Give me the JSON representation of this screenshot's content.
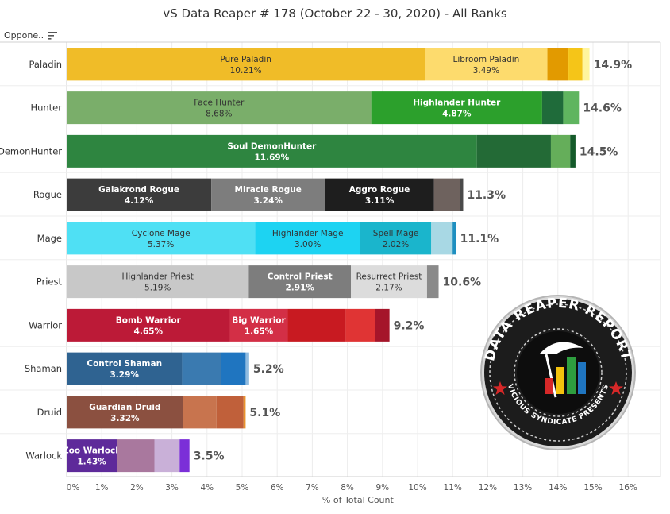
{
  "title": "vS Data Reaper # 178 (October 22 - 30, 2020) - All Ranks",
  "filter_label": "Oppone..",
  "logo": {
    "text_top": "DATA REAPER REPORT",
    "text_bottom": "VICIOUS SYNDICATE PRESENTS"
  },
  "chart_data": {
    "type": "bar",
    "orientation": "horizontal",
    "stacked": true,
    "xlabel": "% of Total Count",
    "ylabel": "",
    "xlim": [
      0,
      16
    ],
    "x_ticks": [
      "0%",
      "1%",
      "2%",
      "3%",
      "4%",
      "5%",
      "6%",
      "7%",
      "8%",
      "9%",
      "10%",
      "11%",
      "12%",
      "13%",
      "14%",
      "15%",
      "16%"
    ],
    "grid": true,
    "categories": [
      {
        "name": "Paladin",
        "total_label": "14.9%",
        "segments": [
          {
            "label": "Pure Paladin",
            "value_label": "10.21%",
            "value": 10.21,
            "color": "#F0BC28",
            "text_color": "#333333"
          },
          {
            "label": "Libroom Paladin",
            "value_label": "3.49%",
            "value": 3.49,
            "color": "#FDDB6D",
            "text_color": "#333333"
          },
          {
            "label": "",
            "value_label": "",
            "value": 0.6,
            "color": "#E29A00"
          },
          {
            "label": "",
            "value_label": "",
            "value": 0.4,
            "color": "#F5C518"
          },
          {
            "label": "",
            "value_label": "",
            "value": 0.2,
            "color": "#FFF59D"
          }
        ]
      },
      {
        "name": "Hunter",
        "total_label": "14.6%",
        "segments": [
          {
            "label": "Face Hunter",
            "value_label": "8.68%",
            "value": 8.68,
            "color": "#7AAE6A",
            "text_color": "#333333"
          },
          {
            "label": "Highlander Hunter",
            "value_label": "4.87%",
            "value": 4.87,
            "color": "#2CA02C",
            "text_color": "#ffffff",
            "bold": true
          },
          {
            "label": "",
            "value_label": "",
            "value": 0.6,
            "color": "#1F6B3A"
          },
          {
            "label": "",
            "value_label": "",
            "value": 0.45,
            "color": "#5FB55F"
          }
        ]
      },
      {
        "name": "DemonHunter",
        "total_label": "14.5%",
        "segments": [
          {
            "label": "Soul DemonHunter",
            "value_label": "11.69%",
            "value": 11.69,
            "color": "#2E8540",
            "text_color": "#ffffff",
            "bold": true
          },
          {
            "label": "",
            "value_label": "",
            "value": 2.11,
            "color": "#236A36"
          },
          {
            "label": "",
            "value_label": "",
            "value": 0.55,
            "color": "#65AE5A"
          },
          {
            "label": "",
            "value_label": "",
            "value": 0.15,
            "color": "#145A2A"
          }
        ]
      },
      {
        "name": "Rogue",
        "total_label": "11.3%",
        "segments": [
          {
            "label": "Galakrond Rogue",
            "value_label": "4.12%",
            "value": 4.12,
            "color": "#3C3C3C",
            "text_color": "#ffffff",
            "bold": true
          },
          {
            "label": "Miracle Rogue",
            "value_label": "3.24%",
            "value": 3.24,
            "color": "#7D7D7D",
            "text_color": "#ffffff",
            "bold": true
          },
          {
            "label": "Aggro Rogue",
            "value_label": "3.11%",
            "value": 3.11,
            "color": "#1E1E1E",
            "text_color": "#ffffff",
            "bold": true
          },
          {
            "label": "",
            "value_label": "",
            "value": 0.73,
            "color": "#6E625E"
          },
          {
            "label": "",
            "value_label": "",
            "value": 0.1,
            "color": "#4A4A4A"
          }
        ]
      },
      {
        "name": "Mage",
        "total_label": "11.1%",
        "segments": [
          {
            "label": "Cyclone Mage",
            "value_label": "5.37%",
            "value": 5.37,
            "color": "#4FE0F4",
            "text_color": "#333333"
          },
          {
            "label": "Highlander Mage",
            "value_label": "3.00%",
            "value": 3.0,
            "color": "#1DD3F2",
            "text_color": "#333333"
          },
          {
            "label": "Spell Mage",
            "value_label": "2.02%",
            "value": 2.02,
            "color": "#1AB5CC",
            "text_color": "#333333"
          },
          {
            "label": "",
            "value_label": "",
            "value": 0.61,
            "color": "#A8D8E4"
          },
          {
            "label": "",
            "value_label": "",
            "value": 0.1,
            "color": "#1E8FC0"
          }
        ]
      },
      {
        "name": "Priest",
        "total_label": "10.6%",
        "segments": [
          {
            "label": "Highlander Priest",
            "value_label": "5.19%",
            "value": 5.19,
            "color": "#C8C8C8",
            "text_color": "#333333"
          },
          {
            "label": "Control Priest",
            "value_label": "2.91%",
            "value": 2.91,
            "color": "#7D7D7D",
            "text_color": "#ffffff",
            "bold": true
          },
          {
            "label": "Resurrect Priest",
            "value_label": "2.17%",
            "value": 2.17,
            "color": "#DCDCDC",
            "text_color": "#333333"
          },
          {
            "label": "",
            "value_label": "",
            "value": 0.33,
            "color": "#8A8A8A"
          }
        ]
      },
      {
        "name": "Warrior",
        "total_label": "9.2%",
        "segments": [
          {
            "label": "Bomb Warrior",
            "value_label": "4.65%",
            "value": 4.65,
            "color": "#BC1A37",
            "text_color": "#ffffff",
            "bold": true
          },
          {
            "label": "Big Warrior",
            "value_label": "1.65%",
            "value": 1.65,
            "color": "#D32F46",
            "text_color": "#ffffff",
            "bold": true
          },
          {
            "label": "",
            "value_label": "",
            "value": 1.65,
            "color": "#C81A21"
          },
          {
            "label": "",
            "value_label": "",
            "value": 0.85,
            "color": "#E03434"
          },
          {
            "label": "",
            "value_label": "",
            "value": 0.4,
            "color": "#A5152A"
          }
        ]
      },
      {
        "name": "Shaman",
        "total_label": "5.2%",
        "segments": [
          {
            "label": "Control Shaman",
            "value_label": "3.29%",
            "value": 3.29,
            "color": "#2F6391",
            "text_color": "#ffffff",
            "bold": true
          },
          {
            "label": "",
            "value_label": "",
            "value": 1.1,
            "color": "#3A7AB0"
          },
          {
            "label": "",
            "value_label": "",
            "value": 0.71,
            "color": "#1F75C0"
          },
          {
            "label": "",
            "value_label": "",
            "value": 0.1,
            "color": "#8FBBE0"
          }
        ]
      },
      {
        "name": "Druid",
        "total_label": "5.1%",
        "segments": [
          {
            "label": "Guardian Druid",
            "value_label": "3.32%",
            "value": 3.32,
            "color": "#8B5040",
            "text_color": "#ffffff",
            "bold": true
          },
          {
            "label": "",
            "value_label": "",
            "value": 0.95,
            "color": "#C8744E"
          },
          {
            "label": "",
            "value_label": "",
            "value": 0.77,
            "color": "#C0603A"
          },
          {
            "label": "",
            "value_label": "",
            "value": 0.06,
            "color": "#E8922D"
          }
        ]
      },
      {
        "name": "Warlock",
        "total_label": "3.5%",
        "segments": [
          {
            "label": "Zoo Warlock",
            "value_label": "1.43%",
            "value": 1.43,
            "color": "#5E2A9A",
            "text_color": "#ffffff",
            "bold": true
          },
          {
            "label": "",
            "value_label": "",
            "value": 1.07,
            "color": "#A9789E"
          },
          {
            "label": "",
            "value_label": "",
            "value": 0.72,
            "color": "#C9B0D8"
          },
          {
            "label": "",
            "value_label": "",
            "value": 0.28,
            "color": "#7B2FD8"
          }
        ]
      }
    ]
  }
}
